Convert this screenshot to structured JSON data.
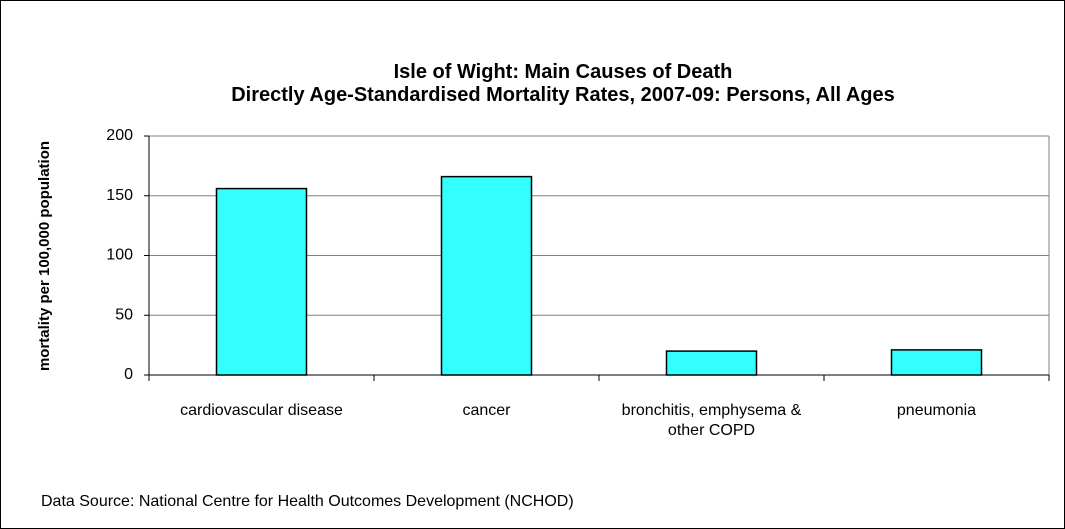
{
  "chart_data": {
    "type": "bar",
    "title": "Isle of Wight: Main Causes of Death",
    "subtitle": "Directly Age-Standardised Mortality Rates, 2007-09: Persons, All Ages",
    "ylabel": "mortality per 100,000 population",
    "categories": [
      "cardiovascular disease",
      "cancer",
      "bronchitis, emphysema & other COPD",
      "pneumonia"
    ],
    "values": [
      156,
      166,
      20,
      21
    ],
    "color": "#33ffff",
    "ylim": [
      0,
      200
    ],
    "yticks": [
      0,
      50,
      100,
      150,
      200
    ],
    "grid": true,
    "source": "Data Source: National Centre for Health Outcomes Development (NCHOD)"
  }
}
